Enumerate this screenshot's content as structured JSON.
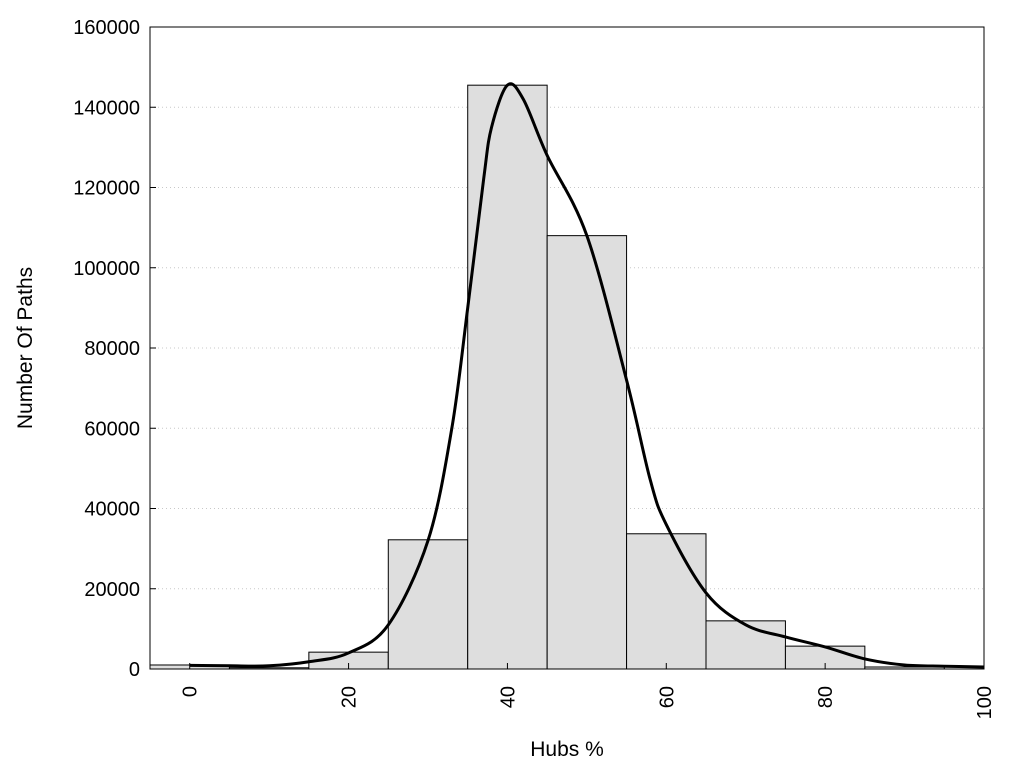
{
  "chart_data": {
    "type": "bar",
    "xlabel": "Hubs %",
    "ylabel": "Number Of Paths",
    "xlim": [
      -5,
      100
    ],
    "ylim": [
      0,
      160000
    ],
    "x_ticks": [
      0,
      20,
      40,
      60,
      80,
      100
    ],
    "y_ticks": [
      0,
      20000,
      40000,
      60000,
      80000,
      100000,
      120000,
      140000,
      160000
    ],
    "grid": "horizontal-dotted",
    "bin_width": 10,
    "bars": [
      {
        "x": 0,
        "value": 1000
      },
      {
        "x": 10,
        "value": 300
      },
      {
        "x": 20,
        "value": 4200
      },
      {
        "x": 30,
        "value": 32200
      },
      {
        "x": 40,
        "value": 145500
      },
      {
        "x": 50,
        "value": 108000
      },
      {
        "x": 60,
        "value": 33700
      },
      {
        "x": 70,
        "value": 12000
      },
      {
        "x": 80,
        "value": 5700
      },
      {
        "x": 90,
        "value": 500
      }
    ],
    "curve": [
      [
        0,
        900
      ],
      [
        5,
        800
      ],
      [
        10,
        800
      ],
      [
        15,
        1800
      ],
      [
        20,
        4000
      ],
      [
        25,
        11000
      ],
      [
        30,
        32000
      ],
      [
        33,
        60000
      ],
      [
        35,
        90000
      ],
      [
        37,
        122000
      ],
      [
        38,
        135000
      ],
      [
        40,
        145500
      ],
      [
        42,
        142000
      ],
      [
        45,
        128000
      ],
      [
        50,
        108000
      ],
      [
        55,
        72000
      ],
      [
        58,
        47000
      ],
      [
        60,
        36000
      ],
      [
        65,
        19000
      ],
      [
        70,
        11000
      ],
      [
        75,
        8000
      ],
      [
        80,
        5500
      ],
      [
        85,
        2500
      ],
      [
        90,
        1000
      ],
      [
        95,
        700
      ],
      [
        100,
        500
      ]
    ],
    "colors": {
      "bar_fill": "#dedede",
      "bar_stroke": "#000000",
      "curve": "#000000",
      "grid": "#c8c8c8"
    }
  }
}
